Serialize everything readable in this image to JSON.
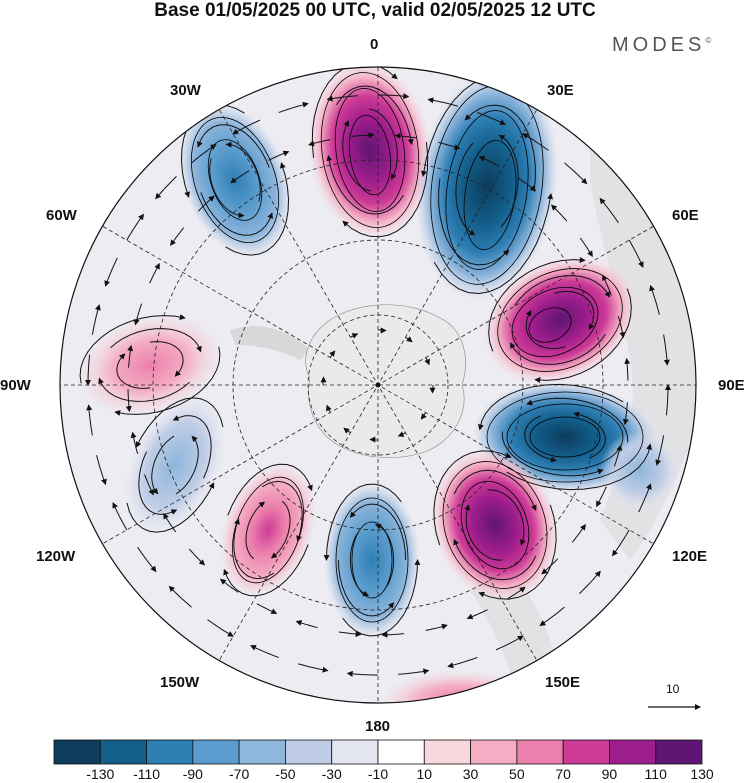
{
  "title": "Base 01/05/2025 00 UTC, valid 02/05/2025 12 UTC",
  "brand": "MODES",
  "brand_mark": "©",
  "longitude_labels": {
    "lon_0": "0",
    "lon_30e": "30E",
    "lon_60e": "60E",
    "lon_90e": "90E",
    "lon_120e": "120E",
    "lon_150e": "150E",
    "lon_180": "180",
    "lon_150w": "150W",
    "lon_120w": "120W",
    "lon_90w": "90W",
    "lon_60w": "60W",
    "lon_30w": "30W"
  },
  "vector_reference": "10",
  "colorbar": {
    "labels": [
      "-130",
      "-110",
      "-90",
      "-70",
      "-50",
      "-30",
      "-10",
      "10",
      "30",
      "50",
      "70",
      "90",
      "110",
      "130"
    ],
    "colors": [
      "#0d3c5c",
      "#135f8b",
      "#2f7fb5",
      "#5a9ccd",
      "#8fb6dc",
      "#bfcde6",
      "#e3e5f0",
      "#ffffff",
      "#f8d7dd",
      "#f4aec4",
      "#ec80ac",
      "#cd3a96",
      "#9e1d8c",
      "#5e1573"
    ]
  },
  "colors": {
    "land": "#e9e9e9",
    "contour": "#000000",
    "graticule": "#222222"
  }
}
